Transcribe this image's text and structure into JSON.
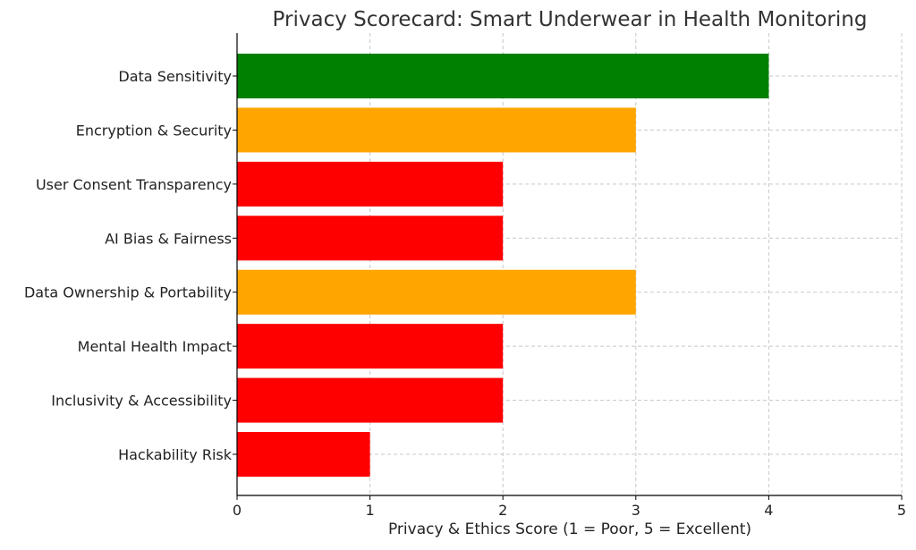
{
  "chart_data": {
    "type": "bar",
    "orientation": "horizontal",
    "title": "Privacy Scorecard: Smart Underwear in Health Monitoring",
    "xlabel": "Privacy & Ethics Score (1 = Poor, 5 = Excellent)",
    "ylabel": "",
    "xlim": [
      0,
      5
    ],
    "xticks": [
      "0",
      "1",
      "2",
      "3",
      "4",
      "5"
    ],
    "grid": true,
    "categories": [
      "Data Sensitivity",
      "Encryption & Security",
      "User Consent Transparency",
      "AI Bias & Fairness",
      "Data Ownership & Portability",
      "Mental Health Impact",
      "Inclusivity & Accessibility",
      "Hackability Risk"
    ],
    "values": [
      4,
      3,
      2,
      2,
      3,
      2,
      2,
      1
    ],
    "colors": [
      "#008000",
      "#FFA500",
      "#FF0000",
      "#FF0000",
      "#FFA500",
      "#FF0000",
      "#FF0000",
      "#FF0000"
    ]
  }
}
